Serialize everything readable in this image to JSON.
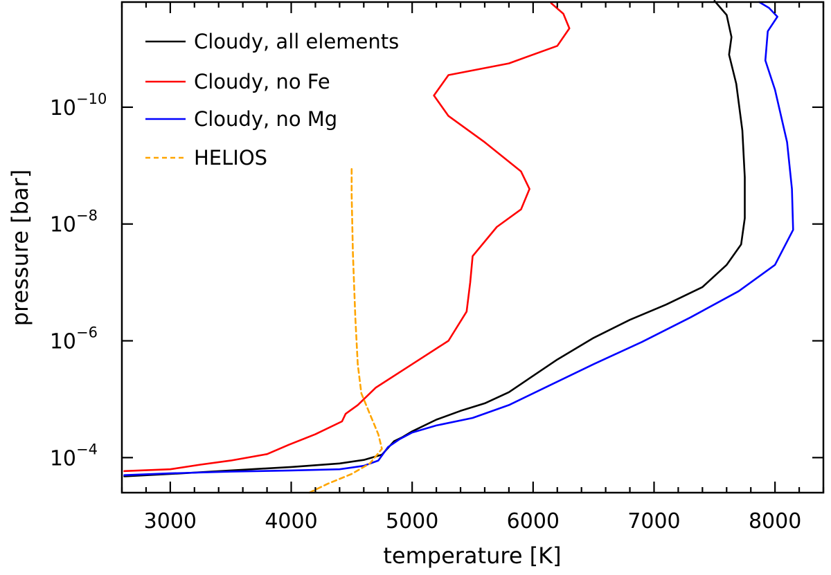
{
  "chart_data": {
    "type": "line",
    "xlabel": "temperature [K]",
    "ylabel": "pressure [bar]",
    "xlim": [
      2600,
      8400
    ],
    "ylim_log10": [
      -3.4,
      -11.8
    ],
    "y_scale": "log",
    "y_direction": "inverted",
    "x_ticks": [
      3000,
      4000,
      5000,
      6000,
      7000,
      8000
    ],
    "y_ticks": [
      {
        "log10": -4,
        "base": "10",
        "exp": "−4"
      },
      {
        "log10": -6,
        "base": "10",
        "exp": "−6"
      },
      {
        "log10": -8,
        "base": "10",
        "exp": "−8"
      },
      {
        "log10": -10,
        "base": "10",
        "exp": "−10"
      }
    ],
    "legend_position": "top-left",
    "series": [
      {
        "name": "Cloudy, all elements",
        "color": "#000000",
        "dash": "solid",
        "points": [
          [
            2620,
            -3.68
          ],
          [
            3000,
            -3.72
          ],
          [
            3500,
            -3.78
          ],
          [
            4000,
            -3.84
          ],
          [
            4400,
            -3.9
          ],
          [
            4600,
            -3.96
          ],
          [
            4750,
            -4.05
          ],
          [
            4850,
            -4.28
          ],
          [
            4920,
            -4.35
          ],
          [
            5000,
            -4.45
          ],
          [
            5200,
            -4.65
          ],
          [
            5400,
            -4.8
          ],
          [
            5600,
            -4.93
          ],
          [
            5800,
            -5.12
          ],
          [
            6000,
            -5.4
          ],
          [
            6200,
            -5.68
          ],
          [
            6500,
            -6.05
          ],
          [
            6800,
            -6.36
          ],
          [
            7100,
            -6.62
          ],
          [
            7400,
            -6.92
          ],
          [
            7600,
            -7.3
          ],
          [
            7720,
            -7.65
          ],
          [
            7750,
            -8.1
          ],
          [
            7750,
            -8.8
          ],
          [
            7730,
            -9.6
          ],
          [
            7680,
            -10.4
          ],
          [
            7620,
            -10.9
          ],
          [
            7640,
            -11.2
          ],
          [
            7600,
            -11.58
          ],
          [
            7500,
            -11.82
          ]
        ]
      },
      {
        "name": "Cloudy, no Fe",
        "color": "#ff0000",
        "dash": "solid",
        "points": [
          [
            2620,
            -3.77
          ],
          [
            3000,
            -3.8
          ],
          [
            3250,
            -3.88
          ],
          [
            3500,
            -3.95
          ],
          [
            3800,
            -4.06
          ],
          [
            3980,
            -4.22
          ],
          [
            4200,
            -4.4
          ],
          [
            4420,
            -4.62
          ],
          [
            4450,
            -4.75
          ],
          [
            4550,
            -4.9
          ],
          [
            4700,
            -5.2
          ],
          [
            5000,
            -5.6
          ],
          [
            5300,
            -6.0
          ],
          [
            5450,
            -6.5
          ],
          [
            5480,
            -7.0
          ],
          [
            5500,
            -7.45
          ],
          [
            5700,
            -7.95
          ],
          [
            5900,
            -8.25
          ],
          [
            5970,
            -8.6
          ],
          [
            5900,
            -8.9
          ],
          [
            5600,
            -9.4
          ],
          [
            5300,
            -9.85
          ],
          [
            5180,
            -10.2
          ],
          [
            5300,
            -10.55
          ],
          [
            5800,
            -10.75
          ],
          [
            6200,
            -11.05
          ],
          [
            6300,
            -11.35
          ],
          [
            6250,
            -11.6
          ],
          [
            6150,
            -11.78
          ]
        ]
      },
      {
        "name": "Cloudy, no Mg",
        "color": "#0000ff",
        "dash": "solid",
        "points": [
          [
            2620,
            -3.7
          ],
          [
            3000,
            -3.73
          ],
          [
            3500,
            -3.76
          ],
          [
            4000,
            -3.78
          ],
          [
            4400,
            -3.8
          ],
          [
            4600,
            -3.86
          ],
          [
            4720,
            -3.95
          ],
          [
            4800,
            -4.18
          ],
          [
            4900,
            -4.32
          ],
          [
            5000,
            -4.43
          ],
          [
            5200,
            -4.55
          ],
          [
            5500,
            -4.68
          ],
          [
            5800,
            -4.9
          ],
          [
            6100,
            -5.2
          ],
          [
            6500,
            -5.6
          ],
          [
            6900,
            -5.98
          ],
          [
            7300,
            -6.4
          ],
          [
            7700,
            -6.85
          ],
          [
            8000,
            -7.3
          ],
          [
            8150,
            -7.9
          ],
          [
            8140,
            -8.6
          ],
          [
            8100,
            -9.4
          ],
          [
            8000,
            -10.3
          ],
          [
            7920,
            -10.8
          ],
          [
            7940,
            -11.3
          ],
          [
            8020,
            -11.55
          ],
          [
            7950,
            -11.7
          ],
          [
            7870,
            -11.8
          ]
        ]
      },
      {
        "name": "HELIOS",
        "color": "#ffa500",
        "dash": "dashed",
        "points": [
          [
            4150,
            -3.4
          ],
          [
            4300,
            -3.55
          ],
          [
            4500,
            -3.72
          ],
          [
            4650,
            -3.9
          ],
          [
            4750,
            -4.15
          ],
          [
            4720,
            -4.4
          ],
          [
            4650,
            -4.75
          ],
          [
            4580,
            -5.1
          ],
          [
            4550,
            -5.6
          ],
          [
            4530,
            -6.4
          ],
          [
            4510,
            -7.5
          ],
          [
            4500,
            -8.5
          ],
          [
            4500,
            -9.0
          ]
        ]
      }
    ]
  }
}
